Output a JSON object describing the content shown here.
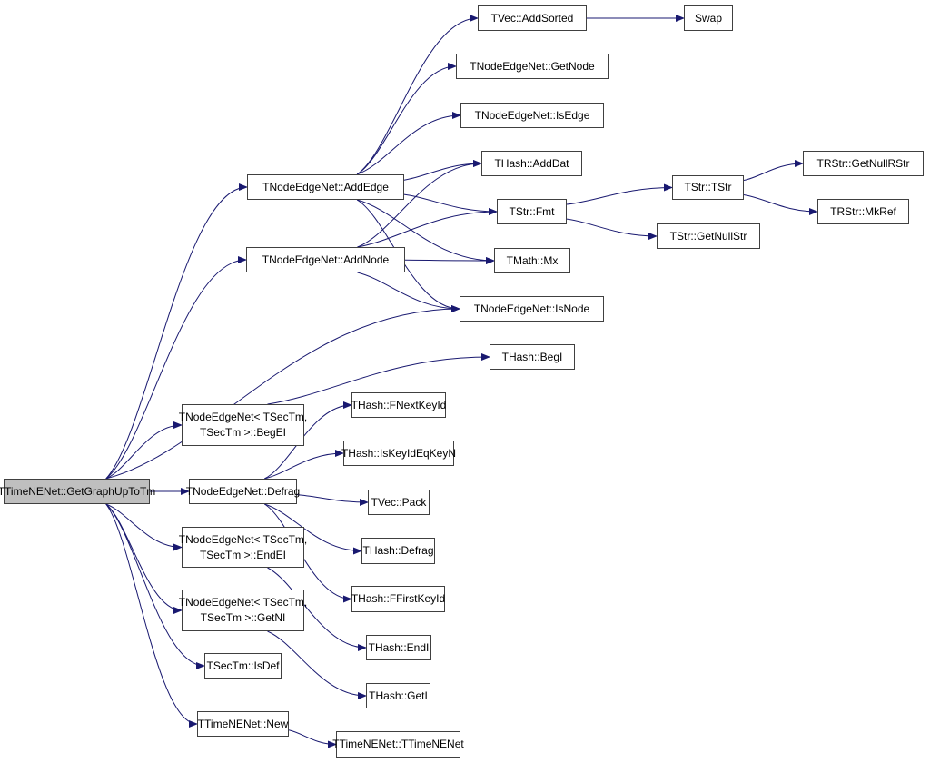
{
  "colors": {
    "edge": "#191970",
    "root_fill": "#bfbfbf",
    "node_fill": "#ffffff",
    "border": "#404040"
  },
  "nodes": {
    "root": {
      "lines": [
        "TTimeNENet::GetGraphUpToTm"
      ]
    },
    "addedge": {
      "lines": [
        "TNodeEdgeNet::AddEdge"
      ]
    },
    "addnode": {
      "lines": [
        "TNodeEdgeNet::AddNode"
      ]
    },
    "begei": {
      "lines": [
        "TNodeEdgeNet< TSecTm,",
        "TSecTm >::BegEI"
      ]
    },
    "defrag": {
      "lines": [
        "TNodeEdgeNet::Defrag"
      ]
    },
    "endei": {
      "lines": [
        "TNodeEdgeNet< TSecTm,",
        "TSecTm >::EndEI"
      ]
    },
    "getni": {
      "lines": [
        "TNodeEdgeNet< TSecTm,",
        "TSecTm >::GetNI"
      ]
    },
    "isdef": {
      "lines": [
        "TSecTm::IsDef"
      ]
    },
    "new": {
      "lines": [
        "TTimeNENet::New"
      ]
    },
    "addsorted": {
      "lines": [
        "TVec::AddSorted"
      ]
    },
    "swap": {
      "lines": [
        "Swap"
      ]
    },
    "getnode": {
      "lines": [
        "TNodeEdgeNet::GetNode"
      ]
    },
    "isedge": {
      "lines": [
        "TNodeEdgeNet::IsEdge"
      ]
    },
    "adddat": {
      "lines": [
        "THash::AddDat"
      ]
    },
    "fmt": {
      "lines": [
        "TStr::Fmt"
      ]
    },
    "tstr": {
      "lines": [
        "TStr::TStr"
      ]
    },
    "getnullrstr": {
      "lines": [
        "TRStr::GetNullRStr"
      ]
    },
    "mkref": {
      "lines": [
        "TRStr::MkRef"
      ]
    },
    "getnullstr": {
      "lines": [
        "TStr::GetNullStr"
      ]
    },
    "mx": {
      "lines": [
        "TMath::Mx"
      ]
    },
    "isnode": {
      "lines": [
        "TNodeEdgeNet::IsNode"
      ]
    },
    "begi": {
      "lines": [
        "THash::BegI"
      ]
    },
    "fnextkeyid": {
      "lines": [
        "THash::FNextKeyId"
      ]
    },
    "iskeyideqkeyn": {
      "lines": [
        "THash::IsKeyIdEqKeyN"
      ]
    },
    "pack": {
      "lines": [
        "TVec::Pack"
      ]
    },
    "hdefrag": {
      "lines": [
        "THash::Defrag"
      ]
    },
    "ffirstkeyid": {
      "lines": [
        "THash::FFirstKeyId"
      ]
    },
    "endi": {
      "lines": [
        "THash::EndI"
      ]
    },
    "geti": {
      "lines": [
        "THash::GetI"
      ]
    },
    "ttimenenet": {
      "lines": [
        "TTimeNENet::TTimeNENet"
      ]
    }
  },
  "edges": [
    [
      "root",
      "addedge"
    ],
    [
      "root",
      "addnode"
    ],
    [
      "root",
      "isnode"
    ],
    [
      "root",
      "begei"
    ],
    [
      "root",
      "defrag"
    ],
    [
      "root",
      "endei"
    ],
    [
      "root",
      "getni"
    ],
    [
      "root",
      "isdef"
    ],
    [
      "root",
      "new"
    ],
    [
      "addedge",
      "addsorted"
    ],
    [
      "addedge",
      "getnode"
    ],
    [
      "addedge",
      "isedge"
    ],
    [
      "addedge",
      "adddat"
    ],
    [
      "addedge",
      "fmt"
    ],
    [
      "addedge",
      "mx"
    ],
    [
      "addedge",
      "isnode"
    ],
    [
      "addnode",
      "adddat"
    ],
    [
      "addnode",
      "fmt"
    ],
    [
      "addnode",
      "mx"
    ],
    [
      "addnode",
      "isnode"
    ],
    [
      "addsorted",
      "swap"
    ],
    [
      "fmt",
      "tstr"
    ],
    [
      "fmt",
      "getnullstr"
    ],
    [
      "tstr",
      "getnullrstr"
    ],
    [
      "tstr",
      "mkref"
    ],
    [
      "begei",
      "begi"
    ],
    [
      "defrag",
      "fnextkeyid"
    ],
    [
      "defrag",
      "iskeyideqkeyn"
    ],
    [
      "defrag",
      "pack"
    ],
    [
      "defrag",
      "hdefrag"
    ],
    [
      "defrag",
      "ffirstkeyid"
    ],
    [
      "endei",
      "endi"
    ],
    [
      "getni",
      "geti"
    ],
    [
      "new",
      "ttimenenet"
    ]
  ]
}
